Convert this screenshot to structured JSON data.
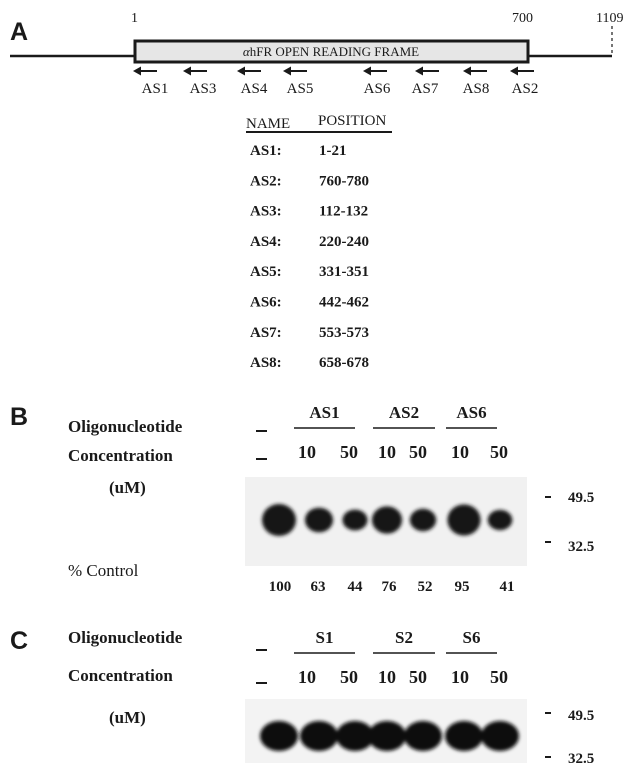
{
  "panel_a": {
    "letter": "A",
    "scale_start": "1",
    "scale_mid": "700",
    "scale_end": "1109",
    "orf_label": "αhFR OPEN READING FRAME",
    "orf_label_greek": "α",
    "orf_label_rest": "hFR OPEN READING FRAME",
    "primers": [
      "AS1",
      "AS3",
      "AS4",
      "AS5",
      "AS6",
      "AS7",
      "AS8",
      "AS2"
    ],
    "table_headers": [
      "NAME",
      "POSITION"
    ],
    "table_rows": [
      {
        "name": "AS1:",
        "position": "1-21"
      },
      {
        "name": "AS2:",
        "position": "760-780"
      },
      {
        "name": "AS3:",
        "position": "112-132"
      },
      {
        "name": "AS4:",
        "position": "220-240"
      },
      {
        "name": "AS5:",
        "position": "331-351"
      },
      {
        "name": "AS6:",
        "position": "442-462"
      },
      {
        "name": "AS7:",
        "position": "553-573"
      },
      {
        "name": "AS8:",
        "position": "658-678"
      }
    ]
  },
  "panel_b": {
    "letter": "B",
    "row_label_1": "Oligonucleotide",
    "row_label_2": "Concentration",
    "row_label_3": "(uM)",
    "groups": [
      "AS1",
      "AS2",
      "AS6"
    ],
    "concentrations": [
      "10",
      "50",
      "10",
      "50",
      "10",
      "50"
    ],
    "marker_high": "49.5",
    "marker_low": "32.5",
    "control_label": "% Control",
    "percent_control": [
      "100",
      "63",
      "44",
      "76",
      "52",
      "95",
      "41"
    ]
  },
  "panel_c": {
    "letter": "C",
    "row_label_1": "Oligonucleotide",
    "row_label_2": "Concentration",
    "row_label_3": "(uM)",
    "groups": [
      "S1",
      "S2",
      "S6"
    ],
    "concentrations": [
      "10",
      "50",
      "10",
      "50",
      "10",
      "50"
    ],
    "marker_high": "49.5",
    "marker_low": "32.5"
  }
}
